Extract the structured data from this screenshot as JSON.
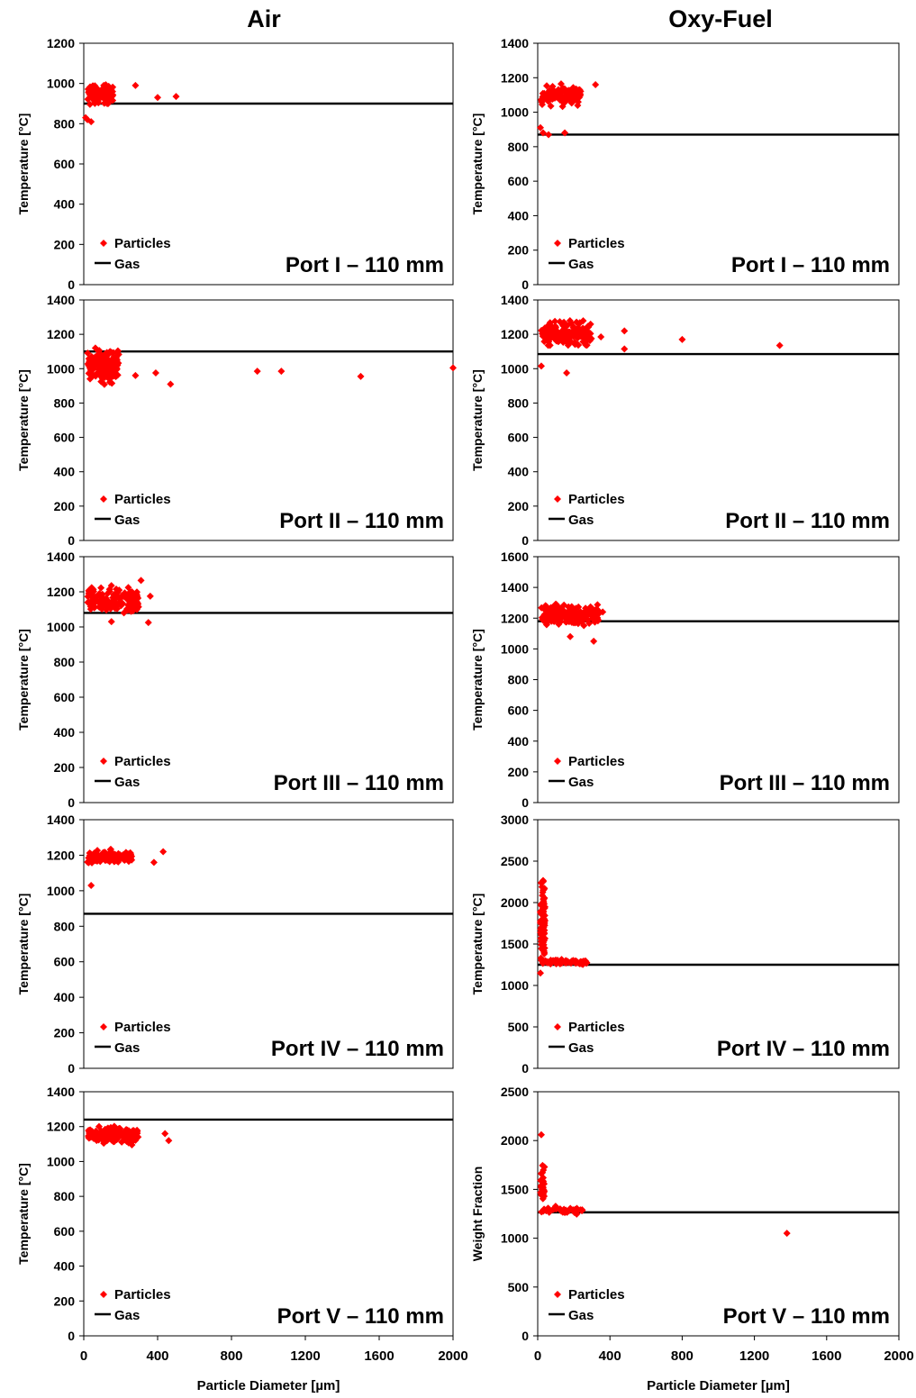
{
  "columns": [
    {
      "title": "Air"
    },
    {
      "title": "Oxy-Fuel"
    }
  ],
  "colors": {
    "particles": "#ff0000",
    "gas": "#000000"
  },
  "chart_data": [
    {
      "type": "scatter",
      "column": "Air",
      "subtitle": "Port I – 110 mm",
      "ylabel": "Temperature [°C]",
      "xlabel": "",
      "ylim": [
        0,
        1200
      ],
      "yticks": [
        0,
        200,
        400,
        600,
        800,
        1000,
        1200
      ],
      "xlim": [
        0,
        2000
      ],
      "xticks": [],
      "legend": [
        "Particles",
        "Gas"
      ],
      "gas": 900,
      "series": [
        {
          "name": "Particles",
          "clusters": [
            {
              "x": [
                20,
                160
              ],
              "y": [
                880,
                1010
              ],
              "n": 110
            }
          ],
          "points": [
            [
              10,
              830
            ],
            [
              20,
              820
            ],
            [
              40,
              810
            ],
            [
              280,
              990
            ],
            [
              400,
              930
            ],
            [
              500,
              935
            ]
          ]
        }
      ]
    },
    {
      "type": "scatter",
      "column": "Oxy-Fuel",
      "subtitle": "Port I – 110 mm",
      "ylabel": "Temperature [°C]",
      "xlabel": "",
      "ylim": [
        0,
        1400
      ],
      "yticks": [
        0,
        200,
        400,
        600,
        800,
        1000,
        1200,
        1400
      ],
      "xlim": [
        0,
        2000
      ],
      "xticks": [],
      "legend": [
        "Particles",
        "Gas"
      ],
      "gas": 870,
      "series": [
        {
          "name": "Particles",
          "clusters": [
            {
              "x": [
                20,
                240
              ],
              "y": [
                1020,
                1180
              ],
              "n": 110
            }
          ],
          "points": [
            [
              15,
              910
            ],
            [
              30,
              880
            ],
            [
              60,
              870
            ],
            [
              150,
              880
            ],
            [
              320,
              1160
            ]
          ]
        }
      ]
    },
    {
      "type": "scatter",
      "column": "Air",
      "subtitle": "Port II – 110 mm",
      "ylabel": "Temperature [°C]",
      "xlabel": "",
      "ylim": [
        0,
        1400
      ],
      "yticks": [
        0,
        200,
        400,
        600,
        800,
        1000,
        1200,
        1400
      ],
      "xlim": [
        0,
        2000
      ],
      "xticks": [],
      "legend": [
        "Particles",
        "Gas"
      ],
      "gas": 1100,
      "series": [
        {
          "name": "Particles",
          "clusters": [
            {
              "x": [
                20,
                190
              ],
              "y": [
                890,
                1150
              ],
              "n": 160
            }
          ],
          "points": [
            [
              280,
              960
            ],
            [
              390,
              975
            ],
            [
              470,
              910
            ],
            [
              940,
              985
            ],
            [
              1070,
              985
            ],
            [
              1500,
              955
            ],
            [
              2000,
              1005
            ]
          ]
        }
      ]
    },
    {
      "type": "scatter",
      "column": "Oxy-Fuel",
      "subtitle": "Port II – 110 mm",
      "ylabel": "Temperature [°C]",
      "xlabel": "",
      "ylim": [
        0,
        1400
      ],
      "yticks": [
        0,
        200,
        400,
        600,
        800,
        1000,
        1200,
        1400
      ],
      "xlim": [
        0,
        2000
      ],
      "xticks": [],
      "legend": [
        "Particles",
        "Gas"
      ],
      "gas": 1085,
      "series": [
        {
          "name": "Particles",
          "clusters": [
            {
              "x": [
                20,
                300
              ],
              "y": [
                1110,
                1300
              ],
              "n": 160
            }
          ],
          "points": [
            [
              20,
              1015
            ],
            [
              160,
              975
            ],
            [
              350,
              1185
            ],
            [
              480,
              1220
            ],
            [
              480,
              1115
            ],
            [
              800,
              1170
            ],
            [
              1340,
              1135
            ]
          ]
        }
      ]
    },
    {
      "type": "scatter",
      "column": "Air",
      "subtitle": "Port III – 110 mm",
      "ylabel": "Temperature [°C]",
      "xlabel": "",
      "ylim": [
        0,
        1400
      ],
      "yticks": [
        0,
        200,
        400,
        600,
        800,
        1000,
        1200,
        1400
      ],
      "xlim": [
        0,
        2000
      ],
      "xticks": [],
      "legend": [
        "Particles",
        "Gas"
      ],
      "gas": 1080,
      "series": [
        {
          "name": "Particles",
          "clusters": [
            {
              "x": [
                20,
                300
              ],
              "y": [
                1040,
                1250
              ],
              "n": 150
            }
          ],
          "points": [
            [
              150,
              1030
            ],
            [
              310,
              1265
            ],
            [
              360,
              1175
            ],
            [
              350,
              1025
            ]
          ]
        }
      ]
    },
    {
      "type": "scatter",
      "column": "Oxy-Fuel",
      "subtitle": "Port III – 110 mm",
      "ylabel": "Temperature [°C]",
      "xlabel": "",
      "ylim": [
        0,
        1600
      ],
      "yticks": [
        0,
        200,
        400,
        600,
        800,
        1000,
        1200,
        1400,
        1600
      ],
      "xlim": [
        0,
        2000
      ],
      "xticks": [],
      "legend": [
        "Particles",
        "Gas"
      ],
      "gas": 1180,
      "series": [
        {
          "name": "Particles",
          "clusters": [
            {
              "x": [
                20,
                350
              ],
              "y": [
                1120,
                1320
              ],
              "n": 160
            }
          ],
          "points": [
            [
              310,
              1050
            ],
            [
              180,
              1080
            ],
            [
              360,
              1240
            ]
          ]
        }
      ]
    },
    {
      "type": "scatter",
      "column": "Air",
      "subtitle": "Port IV – 110 mm",
      "ylabel": "Temperature [°C]",
      "xlabel": "",
      "ylim": [
        0,
        1400
      ],
      "yticks": [
        0,
        200,
        400,
        600,
        800,
        1000,
        1200,
        1400
      ],
      "xlim": [
        0,
        2000
      ],
      "xticks": [],
      "legend": [
        "Particles",
        "Gas"
      ],
      "gas": 870,
      "series": [
        {
          "name": "Particles",
          "clusters": [
            {
              "x": [
                20,
                260
              ],
              "y": [
                1140,
                1240
              ],
              "n": 130
            }
          ],
          "points": [
            [
              40,
              1030
            ],
            [
              380,
              1160
            ],
            [
              430,
              1220
            ]
          ]
        }
      ]
    },
    {
      "type": "scatter",
      "column": "Oxy-Fuel",
      "subtitle": "Port IV – 110 mm",
      "ylabel": "Temperature [°C]",
      "xlabel": "",
      "ylim": [
        0,
        3000
      ],
      "yticks": [
        0,
        500,
        1000,
        1500,
        2000,
        2500,
        3000
      ],
      "xlim": [
        0,
        2000
      ],
      "xticks": [],
      "legend": [
        "Particles",
        "Gas"
      ],
      "gas": 1250,
      "series": [
        {
          "name": "Particles",
          "clusters": [
            {
              "x": [
                15,
                40
              ],
              "y": [
                1150,
                2420
              ],
              "n": 90
            },
            {
              "x": [
                20,
                280
              ],
              "y": [
                1240,
                1330
              ],
              "n": 70
            }
          ],
          "points": [
            [
              15,
              1150
            ]
          ]
        }
      ]
    },
    {
      "type": "scatter",
      "column": "Air",
      "subtitle": "Port V – 110 mm",
      "ylabel": "Temperature [°C]",
      "xlabel": "Particle Diameter [µm]",
      "ylim": [
        0,
        1400
      ],
      "yticks": [
        0,
        200,
        400,
        600,
        800,
        1000,
        1200,
        1400
      ],
      "xlim": [
        0,
        2000
      ],
      "xticks": [
        0,
        400,
        800,
        1200,
        1600,
        2000
      ],
      "legend": [
        "Particles",
        "Gas"
      ],
      "gas": 1240,
      "series": [
        {
          "name": "Particles",
          "clusters": [
            {
              "x": [
                20,
                300
              ],
              "y": [
                1080,
                1220
              ],
              "n": 150
            }
          ],
          "points": [
            [
              440,
              1160
            ],
            [
              460,
              1120
            ]
          ]
        }
      ]
    },
    {
      "type": "scatter",
      "column": "Oxy-Fuel",
      "subtitle": "Port V – 110 mm",
      "ylabel": "Weight Fraction",
      "xlabel": "Particle Diameter [µm]",
      "ylim": [
        0,
        2500
      ],
      "yticks": [
        0,
        500,
        1000,
        1500,
        2000,
        2500
      ],
      "xlim": [
        0,
        2000
      ],
      "xticks": [
        0,
        400,
        800,
        1200,
        1600,
        2000
      ],
      "legend": [
        "Particles",
        "Gas"
      ],
      "gas": 1265,
      "series": [
        {
          "name": "Particles",
          "clusters": [
            {
              "x": [
                15,
                40
              ],
              "y": [
                1250,
                1800
              ],
              "n": 30
            },
            {
              "x": [
                20,
                250
              ],
              "y": [
                1240,
                1340
              ],
              "n": 40
            }
          ],
          "points": [
            [
              20,
              2060
            ],
            [
              1380,
              1050
            ]
          ]
        }
      ]
    }
  ]
}
